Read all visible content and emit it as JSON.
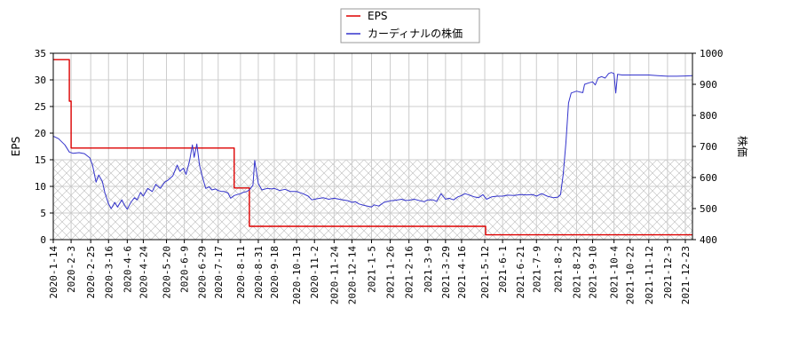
{
  "chart_data": {
    "type": "line",
    "title": "",
    "xlabel": "",
    "ylabel_left": "EPS",
    "ylabel_right": "株価",
    "x_tick_labels": [
      "2020-1-14",
      "2020-2-3",
      "2020-2-25",
      "2020-3-16",
      "2020-4-6",
      "2020-4-24",
      "2020-5-20",
      "2020-6-9",
      "2020-6-29",
      "2020-7-17",
      "2020-8-11",
      "2020-8-31",
      "2020-9-18",
      "2020-10-13",
      "2020-11-2",
      "2020-11-24",
      "2020-12-14",
      "2021-1-5",
      "2021-1-26",
      "2021-2-16",
      "2021-3-9",
      "2021-3-29",
      "2021-4-16",
      "2021-5-12",
      "2021-6-1",
      "2021-6-21",
      "2021-7-9",
      "2021-8-2",
      "2021-8-23",
      "2021-9-10",
      "2021-10-4",
      "2021-10-22",
      "2021-11-12",
      "2021-12-3",
      "2021-12-23"
    ],
    "xlim": [
      "2020-01-14",
      "2021-12-31"
    ],
    "ylim_left": [
      0,
      35
    ],
    "yticks_left": [
      "0",
      "5",
      "10",
      "15",
      "20",
      "25",
      "30",
      "35"
    ],
    "ylim_right": [
      400,
      1000
    ],
    "yticks_right": [
      "400",
      "500",
      "600",
      "700",
      "800",
      "900",
      "1000"
    ],
    "hatched_band_left": [
      0,
      15
    ],
    "grid": true,
    "legend_position": "top-center",
    "series": [
      {
        "name": "EPS",
        "axis": "left",
        "color": "#dd0000",
        "step": true,
        "points": [
          [
            "2020-01-14",
            33.8
          ],
          [
            "2020-02-01",
            33.8
          ],
          [
            "2020-02-01",
            26.0
          ],
          [
            "2020-02-03",
            26.0
          ],
          [
            "2020-02-03",
            17.2
          ],
          [
            "2020-08-04",
            17.2
          ],
          [
            "2020-08-04",
            9.7
          ],
          [
            "2020-08-21",
            9.7
          ],
          [
            "2020-08-21",
            2.5
          ],
          [
            "2021-05-13",
            2.5
          ],
          [
            "2021-05-13",
            0.9
          ],
          [
            "2021-12-31",
            0.9
          ]
        ]
      },
      {
        "name": "カーディナルの株価",
        "axis": "right",
        "color": "#3333cc",
        "step": false,
        "points": [
          [
            "2020-01-14",
            733
          ],
          [
            "2020-01-20",
            725
          ],
          [
            "2020-01-27",
            705
          ],
          [
            "2020-02-01",
            682
          ],
          [
            "2020-02-05",
            678
          ],
          [
            "2020-02-12",
            680
          ],
          [
            "2020-02-18",
            677
          ],
          [
            "2020-02-24",
            663
          ],
          [
            "2020-02-27",
            640
          ],
          [
            "2020-03-02",
            585
          ],
          [
            "2020-03-05",
            608
          ],
          [
            "2020-03-09",
            588
          ],
          [
            "2020-03-12",
            550
          ],
          [
            "2020-03-16",
            515
          ],
          [
            "2020-03-19",
            500
          ],
          [
            "2020-03-23",
            520
          ],
          [
            "2020-03-26",
            505
          ],
          [
            "2020-03-31",
            528
          ],
          [
            "2020-04-03",
            510
          ],
          [
            "2020-04-06",
            498
          ],
          [
            "2020-04-10",
            520
          ],
          [
            "2020-04-14",
            535
          ],
          [
            "2020-04-17",
            528
          ],
          [
            "2020-04-21",
            552
          ],
          [
            "2020-04-24",
            540
          ],
          [
            "2020-04-29",
            565
          ],
          [
            "2020-05-04",
            555
          ],
          [
            "2020-05-08",
            578
          ],
          [
            "2020-05-13",
            565
          ],
          [
            "2020-05-18",
            585
          ],
          [
            "2020-05-22",
            592
          ],
          [
            "2020-05-27",
            605
          ],
          [
            "2020-06-01",
            640
          ],
          [
            "2020-06-04",
            620
          ],
          [
            "2020-06-08",
            630
          ],
          [
            "2020-06-11",
            610
          ],
          [
            "2020-06-15",
            655
          ],
          [
            "2020-06-18",
            705
          ],
          [
            "2020-06-20",
            665
          ],
          [
            "2020-06-23",
            708
          ],
          [
            "2020-06-26",
            640
          ],
          [
            "2020-06-29",
            605
          ],
          [
            "2020-07-03",
            565
          ],
          [
            "2020-07-07",
            570
          ],
          [
            "2020-07-10",
            560
          ],
          [
            "2020-07-14",
            563
          ],
          [
            "2020-07-17",
            558
          ],
          [
            "2020-07-21",
            555
          ],
          [
            "2020-07-24",
            555
          ],
          [
            "2020-07-28",
            550
          ],
          [
            "2020-07-31",
            533
          ],
          [
            "2020-08-04",
            542
          ],
          [
            "2020-08-07",
            545
          ],
          [
            "2020-08-11",
            548
          ],
          [
            "2020-08-14",
            552
          ],
          [
            "2020-08-18",
            555
          ],
          [
            "2020-08-21",
            560
          ],
          [
            "2020-08-25",
            575
          ],
          [
            "2020-08-27",
            655
          ],
          [
            "2020-08-31",
            580
          ],
          [
            "2020-09-04",
            560
          ],
          [
            "2020-09-10",
            565
          ],
          [
            "2020-09-15",
            563
          ],
          [
            "2020-09-18",
            565
          ],
          [
            "2020-09-24",
            558
          ],
          [
            "2020-09-30",
            562
          ],
          [
            "2020-10-06",
            555
          ],
          [
            "2020-10-13",
            555
          ],
          [
            "2020-10-20",
            548
          ],
          [
            "2020-10-26",
            540
          ],
          [
            "2020-10-30",
            528
          ],
          [
            "2020-11-02",
            530
          ],
          [
            "2020-11-06",
            532
          ],
          [
            "2020-11-12",
            535
          ],
          [
            "2020-11-18",
            530
          ],
          [
            "2020-11-24",
            533
          ],
          [
            "2020-11-30",
            530
          ],
          [
            "2020-12-04",
            528
          ],
          [
            "2020-12-10",
            525
          ],
          [
            "2020-12-14",
            520
          ],
          [
            "2020-12-18",
            522
          ],
          [
            "2020-12-22",
            515
          ],
          [
            "2020-12-28",
            510
          ],
          [
            "2021-01-05",
            505
          ],
          [
            "2021-01-08",
            512
          ],
          [
            "2021-01-13",
            508
          ],
          [
            "2021-01-19",
            520
          ],
          [
            "2021-01-26",
            525
          ],
          [
            "2021-02-01",
            527
          ],
          [
            "2021-02-08",
            530
          ],
          [
            "2021-02-12",
            526
          ],
          [
            "2021-02-16",
            527
          ],
          [
            "2021-02-22",
            530
          ],
          [
            "2021-03-01",
            525
          ],
          [
            "2021-03-05",
            522
          ],
          [
            "2021-03-09",
            528
          ],
          [
            "2021-03-15",
            528
          ],
          [
            "2021-03-19",
            523
          ],
          [
            "2021-03-24",
            548
          ],
          [
            "2021-03-29",
            530
          ],
          [
            "2021-04-02",
            533
          ],
          [
            "2021-04-07",
            528
          ],
          [
            "2021-04-12",
            538
          ],
          [
            "2021-04-16",
            542
          ],
          [
            "2021-04-20",
            548
          ],
          [
            "2021-04-26",
            542
          ],
          [
            "2021-04-30",
            538
          ],
          [
            "2021-05-05",
            535
          ],
          [
            "2021-05-10",
            545
          ],
          [
            "2021-05-14",
            530
          ],
          [
            "2021-05-20",
            538
          ],
          [
            "2021-05-26",
            540
          ],
          [
            "2021-06-01",
            540
          ],
          [
            "2021-06-07",
            543
          ],
          [
            "2021-06-14",
            542
          ],
          [
            "2021-06-21",
            545
          ],
          [
            "2021-06-28",
            544
          ],
          [
            "2021-07-05",
            545
          ],
          [
            "2021-07-09",
            540
          ],
          [
            "2021-07-15",
            548
          ],
          [
            "2021-07-21",
            540
          ],
          [
            "2021-07-28",
            535
          ],
          [
            "2021-08-02",
            537
          ],
          [
            "2021-08-05",
            545
          ],
          [
            "2021-08-08",
            610
          ],
          [
            "2021-08-11",
            710
          ],
          [
            "2021-08-14",
            840
          ],
          [
            "2021-08-17",
            872
          ],
          [
            "2021-08-23",
            878
          ],
          [
            "2021-08-27",
            875
          ],
          [
            "2021-08-30",
            873
          ],
          [
            "2021-09-01",
            900
          ],
          [
            "2021-09-06",
            905
          ],
          [
            "2021-09-10",
            908
          ],
          [
            "2021-09-13",
            898
          ],
          [
            "2021-09-16",
            920
          ],
          [
            "2021-09-20",
            925
          ],
          [
            "2021-09-24",
            920
          ],
          [
            "2021-09-28",
            935
          ],
          [
            "2021-10-01",
            938
          ],
          [
            "2021-10-04",
            935
          ],
          [
            "2021-10-06",
            872
          ],
          [
            "2021-10-08",
            932
          ],
          [
            "2021-10-13",
            930
          ],
          [
            "2021-10-22",
            930
          ],
          [
            "2021-11-01",
            930
          ],
          [
            "2021-11-12",
            930
          ],
          [
            "2021-11-22",
            928
          ],
          [
            "2021-12-03",
            926
          ],
          [
            "2021-12-13",
            926
          ],
          [
            "2021-12-23",
            927
          ],
          [
            "2021-12-31",
            928
          ]
        ]
      }
    ]
  }
}
